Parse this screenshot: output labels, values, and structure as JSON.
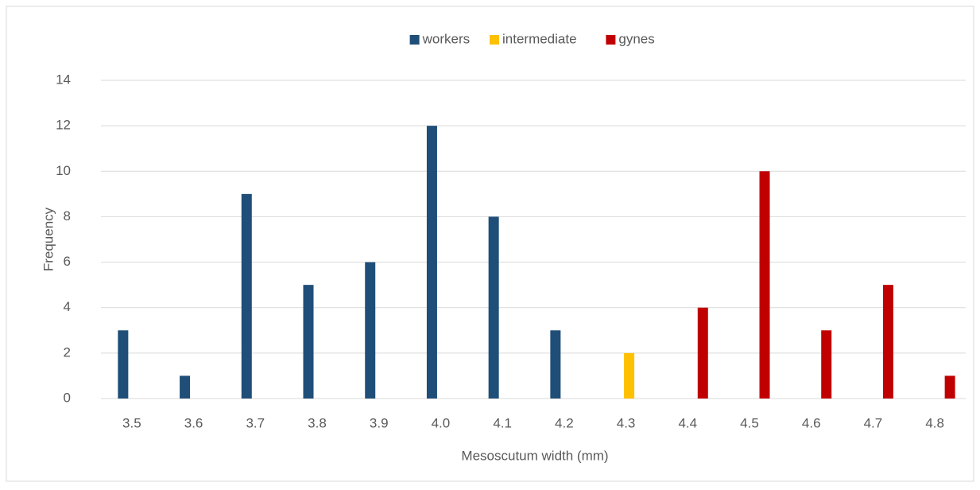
{
  "chart_data": {
    "type": "bar",
    "xlabel": "Mesoscutum width (mm)",
    "ylabel": "Frequency",
    "categories": [
      "3.5",
      "3.6",
      "3.7",
      "3.8",
      "3.9",
      "4.0",
      "4.1",
      "4.2",
      "4.3",
      "4.4",
      "4.5",
      "4.6",
      "4.7",
      "4.8"
    ],
    "series": [
      {
        "name": "workers",
        "color": "#1f4e79",
        "values": [
          3,
          1,
          9,
          5,
          6,
          12,
          8,
          3,
          null,
          null,
          null,
          null,
          null,
          null
        ]
      },
      {
        "name": "intermediate",
        "color": "#ffc000",
        "values": [
          null,
          null,
          null,
          null,
          null,
          null,
          null,
          null,
          2,
          null,
          null,
          null,
          null,
          null
        ]
      },
      {
        "name": "gynes",
        "color": "#c00000",
        "values": [
          null,
          null,
          null,
          null,
          null,
          null,
          null,
          null,
          null,
          4,
          10,
          3,
          5,
          1
        ]
      }
    ],
    "ylim": [
      0,
      14
    ],
    "yticks": [
      0,
      2,
      4,
      6,
      8,
      10,
      12,
      14
    ],
    "grid": true,
    "legend": "top"
  }
}
